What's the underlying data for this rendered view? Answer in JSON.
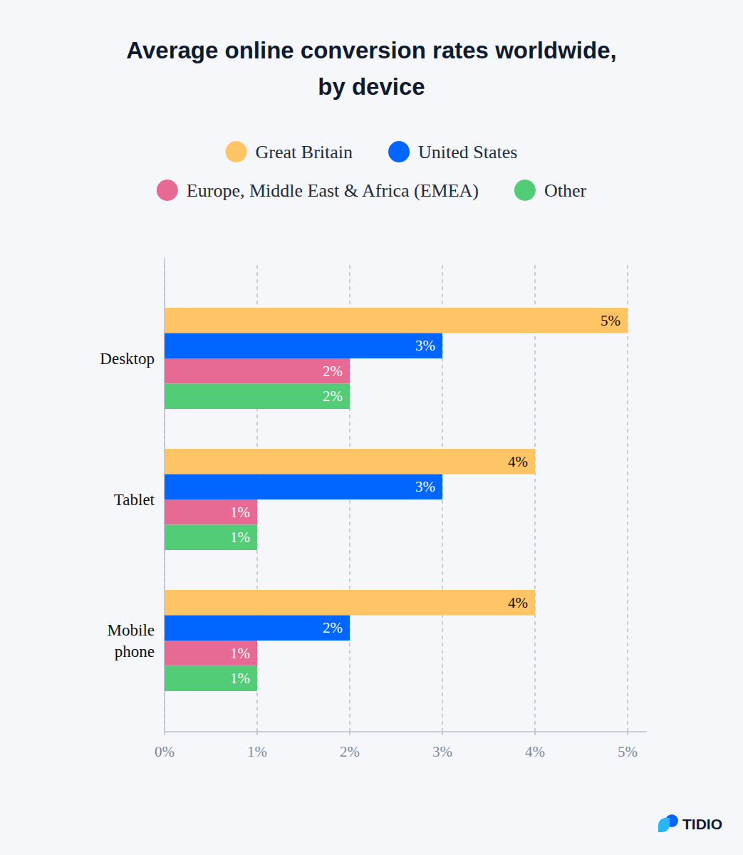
{
  "chart_data": {
    "type": "bar",
    "orientation": "horizontal",
    "title": "Average online conversion rates worldwide,\nby device",
    "categories": [
      "Desktop",
      "Tablet",
      "Mobile phone"
    ],
    "series": [
      {
        "name": "Great Britain",
        "color": "#ffc466",
        "values": [
          5,
          4,
          4
        ],
        "value_labels": [
          "5%",
          "4%",
          "4%"
        ]
      },
      {
        "name": "United States",
        "color": "#0066ff",
        "values": [
          3,
          3,
          2
        ],
        "value_labels": [
          "3%",
          "3%",
          "2%"
        ]
      },
      {
        "name": "Europe, Middle East & Africa (EMEA)",
        "color": "#e66a93",
        "values": [
          2,
          1,
          1
        ],
        "value_labels": [
          "2%",
          "1%",
          "1%"
        ]
      },
      {
        "name": "Other",
        "color": "#52cc77",
        "values": [
          2,
          1,
          1
        ],
        "value_labels": [
          "2%",
          "1%",
          "1%"
        ]
      }
    ],
    "xlim": [
      0,
      5
    ],
    "xticks": [
      {
        "value": 0,
        "label": "0%"
      },
      {
        "value": 1,
        "label": "1%"
      },
      {
        "value": 2,
        "label": "2%"
      },
      {
        "value": 3,
        "label": "3%"
      },
      {
        "value": 4,
        "label": "4%"
      },
      {
        "value": 5,
        "label": "5%"
      }
    ],
    "grid": true,
    "legend": "top",
    "data_labels": true,
    "annotations": [
      "TIDIO"
    ]
  }
}
